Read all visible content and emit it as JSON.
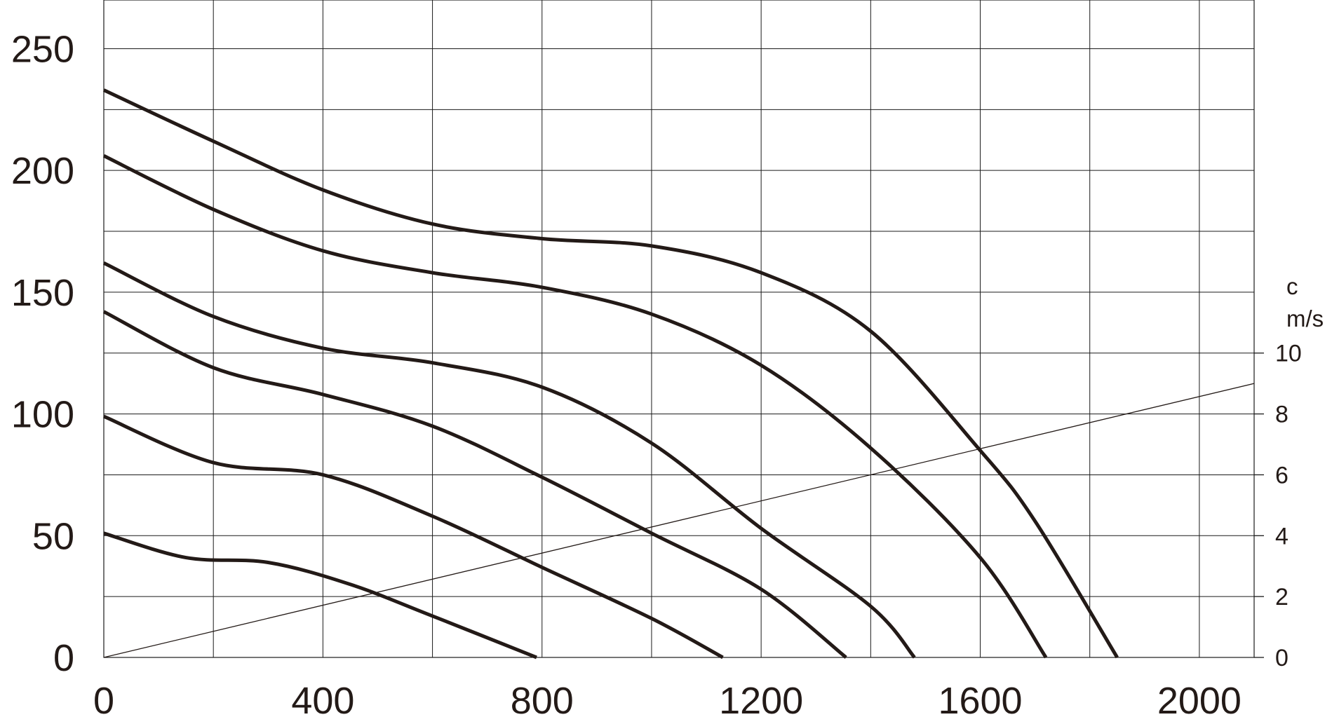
{
  "chart_data": {
    "type": "line",
    "title": "",
    "xlabel": "",
    "ylabel": "",
    "xlim": [
      0,
      2100
    ],
    "ylim": [
      0,
      270
    ],
    "x_ticks": [
      0,
      400,
      800,
      1200,
      1600,
      2000
    ],
    "x_tick_labels": [
      "0",
      "400",
      "800",
      "1200",
      "1600",
      "2000"
    ],
    "x_grid": [
      0,
      200,
      400,
      600,
      800,
      1000,
      1200,
      1400,
      1600,
      1800,
      2000,
      2100
    ],
    "y_ticks": [
      0,
      50,
      100,
      150,
      200,
      250
    ],
    "y_tick_labels": [
      "0",
      "50",
      "100",
      "150",
      "200",
      "250"
    ],
    "y_grid": [
      0,
      25,
      50,
      75,
      100,
      125,
      150,
      175,
      200,
      225,
      250
    ],
    "grid": true,
    "series": [
      {
        "points": [
          [
            0,
            233
          ],
          [
            200,
            212
          ],
          [
            400,
            192
          ],
          [
            600,
            178
          ],
          [
            800,
            172
          ],
          [
            1000,
            169
          ],
          [
            1200,
            158
          ],
          [
            1400,
            134
          ],
          [
            1600,
            85
          ],
          [
            1700,
            56
          ],
          [
            1850,
            0
          ]
        ]
      },
      {
        "points": [
          [
            0,
            206
          ],
          [
            200,
            184
          ],
          [
            400,
            167
          ],
          [
            600,
            158
          ],
          [
            800,
            152
          ],
          [
            1000,
            141
          ],
          [
            1200,
            120
          ],
          [
            1400,
            86
          ],
          [
            1600,
            41
          ],
          [
            1720,
            0
          ]
        ]
      },
      {
        "points": [
          [
            0,
            162
          ],
          [
            200,
            140
          ],
          [
            400,
            127
          ],
          [
            600,
            121
          ],
          [
            800,
            111
          ],
          [
            1000,
            88
          ],
          [
            1200,
            53
          ],
          [
            1400,
            21
          ],
          [
            1480,
            0
          ]
        ]
      },
      {
        "points": [
          [
            0,
            142
          ],
          [
            200,
            119
          ],
          [
            400,
            108
          ],
          [
            600,
            95
          ],
          [
            800,
            74
          ],
          [
            1000,
            51
          ],
          [
            1200,
            28
          ],
          [
            1355,
            0
          ]
        ]
      },
      {
        "points": [
          [
            0,
            99
          ],
          [
            200,
            80
          ],
          [
            400,
            75
          ],
          [
            600,
            58
          ],
          [
            800,
            37
          ],
          [
            1000,
            16
          ],
          [
            1130,
            0
          ]
        ]
      },
      {
        "points": [
          [
            0,
            51
          ],
          [
            150,
            41
          ],
          [
            300,
            39
          ],
          [
            450,
            30
          ],
          [
            600,
            17
          ],
          [
            790,
            0
          ]
        ]
      }
    ],
    "velocity_line": {
      "points": [
        [
          0,
          0
        ],
        [
          2100,
          9.0
        ]
      ]
    },
    "right_axis": {
      "label_line1": "c",
      "label_line2": "m/s",
      "range": [
        0,
        10
      ],
      "ticks": [
        0,
        2,
        4,
        6,
        8,
        10
      ],
      "tick_labels": [
        "0",
        "2",
        "4",
        "6",
        "8",
        "10"
      ]
    }
  }
}
